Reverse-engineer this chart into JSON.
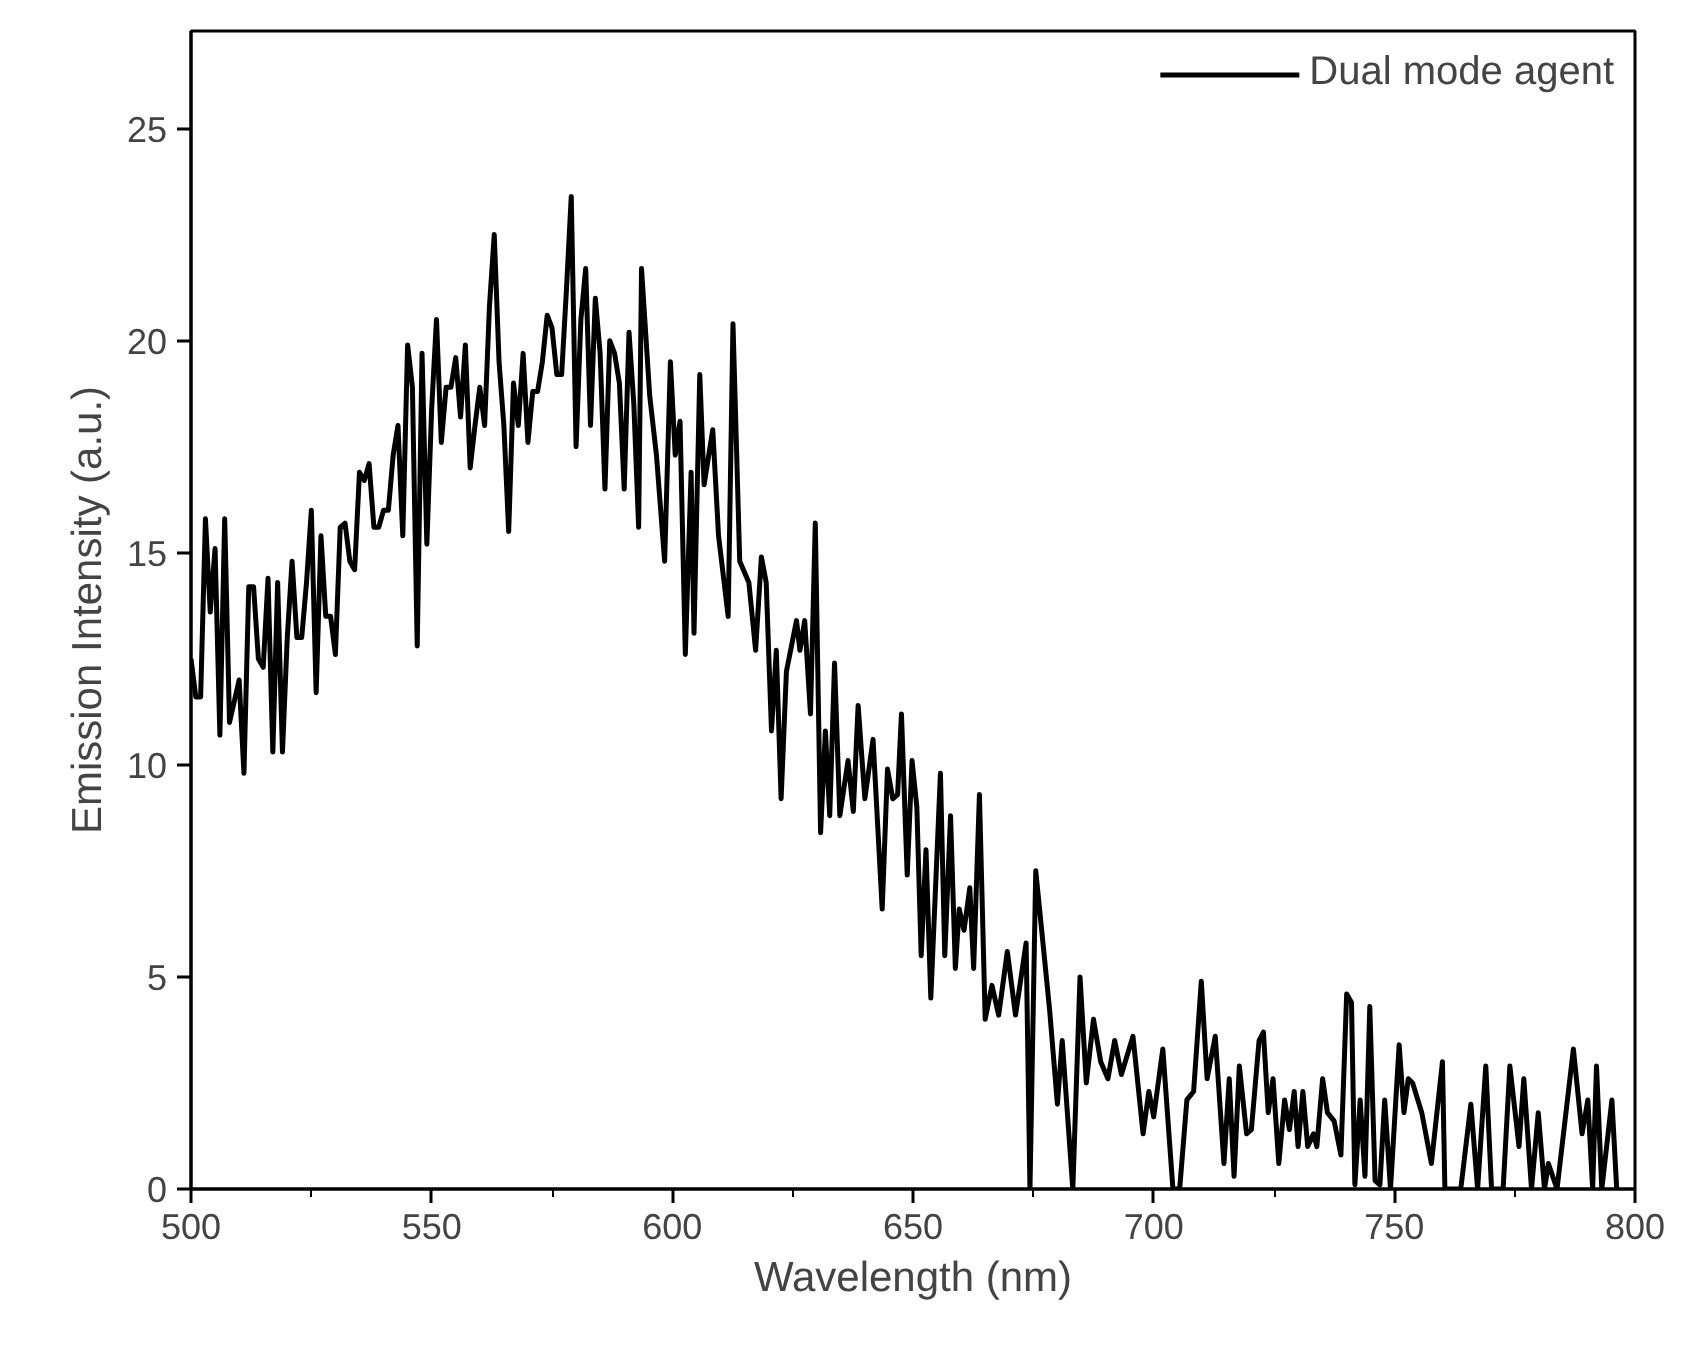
{
  "chart_data": {
    "type": "line",
    "xlabel": "Wavelength (nm)",
    "ylabel": "Emission Intensity (a.u.)",
    "xlim": [
      500,
      800
    ],
    "ylim": [
      0,
      27.3
    ],
    "xticks": [
      500,
      {
        "value": 525,
        "label": null
      },
      550,
      {
        "value": 575,
        "label": null
      },
      600,
      {
        "value": 625,
        "label": null
      },
      650,
      {
        "value": 675,
        "label": null
      },
      700,
      {
        "value": 725,
        "label": null
      },
      750,
      {
        "value": 775,
        "label": null
      },
      800
    ],
    "yticks": [
      0,
      5,
      10,
      15,
      20,
      25
    ],
    "grid": false,
    "legend": "top right",
    "line_style": "solid",
    "marker": "none",
    "series": [
      {
        "name": "Dual mode agent",
        "color": "#000000",
        "x": [
          500,
          501,
          502,
          503,
          504,
          505,
          506,
          507,
          508,
          509,
          510,
          511,
          512,
          513,
          514,
          515,
          516,
          517,
          518,
          519,
          520,
          521,
          522,
          523,
          524,
          525,
          526,
          527,
          528,
          529,
          530,
          531,
          532,
          533,
          534,
          535,
          536,
          537,
          538,
          539,
          540,
          541,
          542,
          543,
          544,
          545,
          546,
          547,
          548,
          549,
          550,
          551,
          552,
          553,
          554,
          555,
          556,
          557,
          558,
          559,
          560,
          561,
          562,
          563,
          564,
          565,
          566,
          567,
          568,
          569,
          570,
          571,
          572,
          573,
          574,
          575,
          576,
          577,
          578,
          579,
          580,
          581,
          582,
          583,
          584,
          585,
          586,
          587,
          588,
          589,
          590,
          591,
          592,
          593,
          593.6,
          595.3,
          596.7,
          598.4,
          599.6,
          600.6,
          601.6,
          602.7,
          603.9,
          604.5,
          605.7,
          606.6,
          608.4,
          609.6,
          611.6,
          612.6,
          614,
          615.9,
          617.3,
          618.5,
          619.5,
          620.6,
          621.6,
          622.6,
          623.7,
          625.8,
          626.5,
          627.5,
          628.7,
          629.7,
          630.8,
          631.8,
          632.7,
          633.7,
          634.8,
          636.5,
          637.6,
          638.6,
          640,
          641.7,
          643.6,
          644.7,
          645.8,
          646.8,
          647.6,
          648.8,
          649.8,
          650.8,
          651.7,
          652.7,
          653.7,
          655.7,
          656.6,
          657.8,
          658.8,
          659.6,
          660.6,
          661.8,
          662.6,
          663.8,
          665,
          666.4,
          667.8,
          669.6,
          671.3,
          673.5,
          674.3,
          675.5,
          677,
          678.4,
          680,
          681,
          683.2,
          684.7,
          686,
          687.5,
          689,
          690.5,
          691.9,
          693.3,
          695.7,
          697.8,
          699,
          700,
          701.9,
          704,
          705.4,
          706.9,
          708.3,
          709.9,
          711.1,
          712.8,
          714.6,
          715.7,
          716.7,
          717.8,
          719.3,
          720.3,
          721.9,
          722.8,
          723.8,
          724.8,
          726,
          727.2,
          728.2,
          729.2,
          730,
          731,
          732,
          733.2,
          733.9,
          735.1,
          736.1,
          737.5,
          738.9,
          740.1,
          741.1,
          741.8,
          742.9,
          743.9,
          744.9,
          746,
          747,
          748,
          749.2,
          751,
          752,
          752.9,
          753.8,
          755.7,
          757.7,
          760,
          760.5,
          763.8,
          765.9,
          767.3,
          769,
          770.2,
          772.6,
          774,
          775.9,
          776.9,
          778.5,
          779.9,
          781.2,
          782,
          783.8,
          787.2,
          789,
          790.2,
          791.2,
          792,
          793.1,
          795.2,
          796.2
        ],
        "values": [
          12.5,
          11.6,
          11.6,
          15.8,
          13.6,
          15.1,
          10.7,
          15.8,
          11,
          11.5,
          12,
          9.8,
          14.2,
          14.2,
          12.5,
          12.3,
          14.4,
          10.3,
          14.3,
          10.3,
          13,
          14.8,
          13,
          13,
          14.3,
          16,
          11.7,
          15.4,
          13.5,
          13.5,
          12.6,
          15.6,
          15.7,
          14.8,
          14.6,
          16.9,
          16.7,
          17.1,
          15.6,
          15.6,
          16,
          16,
          17.3,
          18,
          15.4,
          19.9,
          18.9,
          12.8,
          19.7,
          15.2,
          18.4,
          20.5,
          17.6,
          18.9,
          18.9,
          19.6,
          18.2,
          19.9,
          17,
          18,
          18.9,
          18,
          20.8,
          22.5,
          19.5,
          18,
          15.5,
          19,
          18,
          19.7,
          17.6,
          18.8,
          18.8,
          19.5,
          20.6,
          20.3,
          19.2,
          19.2,
          21.2,
          23.4,
          17.5,
          20.5,
          21.7,
          18,
          21,
          19.7,
          16.5,
          20,
          19.7,
          19,
          16.5,
          20.2,
          18.5,
          15.6,
          21.7,
          18.7,
          17.3,
          14.8,
          19.5,
          17.3,
          18.1,
          12.6,
          16.9,
          13.1,
          19.2,
          16.6,
          17.9,
          15.4,
          13.5,
          20.4,
          14.8,
          14.3,
          12.7,
          14.9,
          14.3,
          10.8,
          12.7,
          9.2,
          12.2,
          13.4,
          12.7,
          13.4,
          11.2,
          15.7,
          8.4,
          10.8,
          8.8,
          12.4,
          8.8,
          10.1,
          8.9,
          11.4,
          9.2,
          10.6,
          6.6,
          9.9,
          9.2,
          9.3,
          11.2,
          7.4,
          10.1,
          9,
          5.5,
          8,
          4.5,
          9.8,
          5.5,
          8.8,
          5.2,
          6.6,
          6.1,
          7.1,
          5.2,
          9.3,
          4,
          4.8,
          4.1,
          5.6,
          4.1,
          5.8,
          0,
          7.5,
          5.8,
          4.2,
          2,
          3.5,
          0,
          5,
          2.5,
          4,
          3,
          2.6,
          3.5,
          2.7,
          3.6,
          1.3,
          2.3,
          1.7,
          3.3,
          0,
          0,
          2.1,
          2.3,
          4.9,
          2.6,
          3.6,
          0.6,
          2.6,
          0.3,
          2.9,
          1.3,
          1.4,
          3.5,
          3.7,
          1.8,
          2.6,
          0.6,
          2.1,
          1.4,
          2.3,
          1,
          2.3,
          1,
          1.3,
          1,
          2.6,
          1.8,
          1.6,
          0.8,
          4.6,
          4.4,
          0.1,
          2.1,
          0.3,
          4.3,
          0.2,
          0.1,
          2.1,
          0,
          3.4,
          1.8,
          2.6,
          2.5,
          1.8,
          0.6,
          3,
          0,
          0,
          2,
          0,
          2.9,
          0,
          0,
          2.9,
          1,
          2.6,
          0,
          1.8,
          0,
          0.6,
          0,
          3.3,
          1.3,
          2.1,
          0,
          2.9,
          0,
          2.1,
          0
        ]
      }
    ]
  }
}
